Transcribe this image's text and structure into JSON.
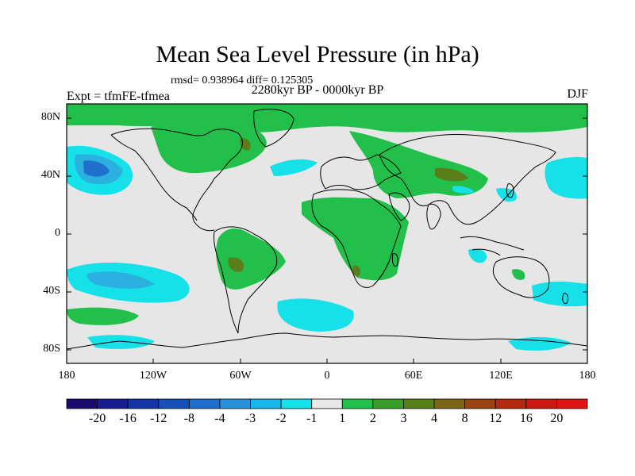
{
  "header": {
    "title": "Mean Sea Level Pressure (in hPa)",
    "stats": "rmsd= 0.938964 diff= 0.125305",
    "period": "2280kyr BP - 0000kyr BP",
    "experiment": "Expt = tfmFE-tfmea",
    "season": "DJF"
  },
  "axes": {
    "y_ticks": [
      "80N",
      "40N",
      "0",
      "40S",
      "80S"
    ],
    "x_ticks": [
      "180",
      "120W",
      "60W",
      "0",
      "60E",
      "120E",
      "180"
    ]
  },
  "colorbar": {
    "labels": [
      "-20",
      "-16",
      "-12",
      "-8",
      "-4",
      "-3",
      "-2",
      "-1",
      "1",
      "2",
      "3",
      "4",
      "8",
      "12",
      "16",
      "20"
    ],
    "colors": [
      "#1a0a6e",
      "#1b1d8f",
      "#1436a5",
      "#1650b8",
      "#1f6fcb",
      "#2b91d8",
      "#18b8e8",
      "#16e0e8",
      "#e8e8e8",
      "#22c04a",
      "#3a9c2a",
      "#5a7e1a",
      "#7c6418",
      "#9a4414",
      "#b32a10",
      "#cc1a10",
      "#e01414"
    ]
  },
  "palette": {
    "background": "#e6e6e6",
    "positive_light": "#22c04a",
    "positive_mid": "#5a7e1a",
    "negative_light": "#16e0e8",
    "negative_mid": "#2bb0e0",
    "negative_strong": "#1f6fcb"
  }
}
